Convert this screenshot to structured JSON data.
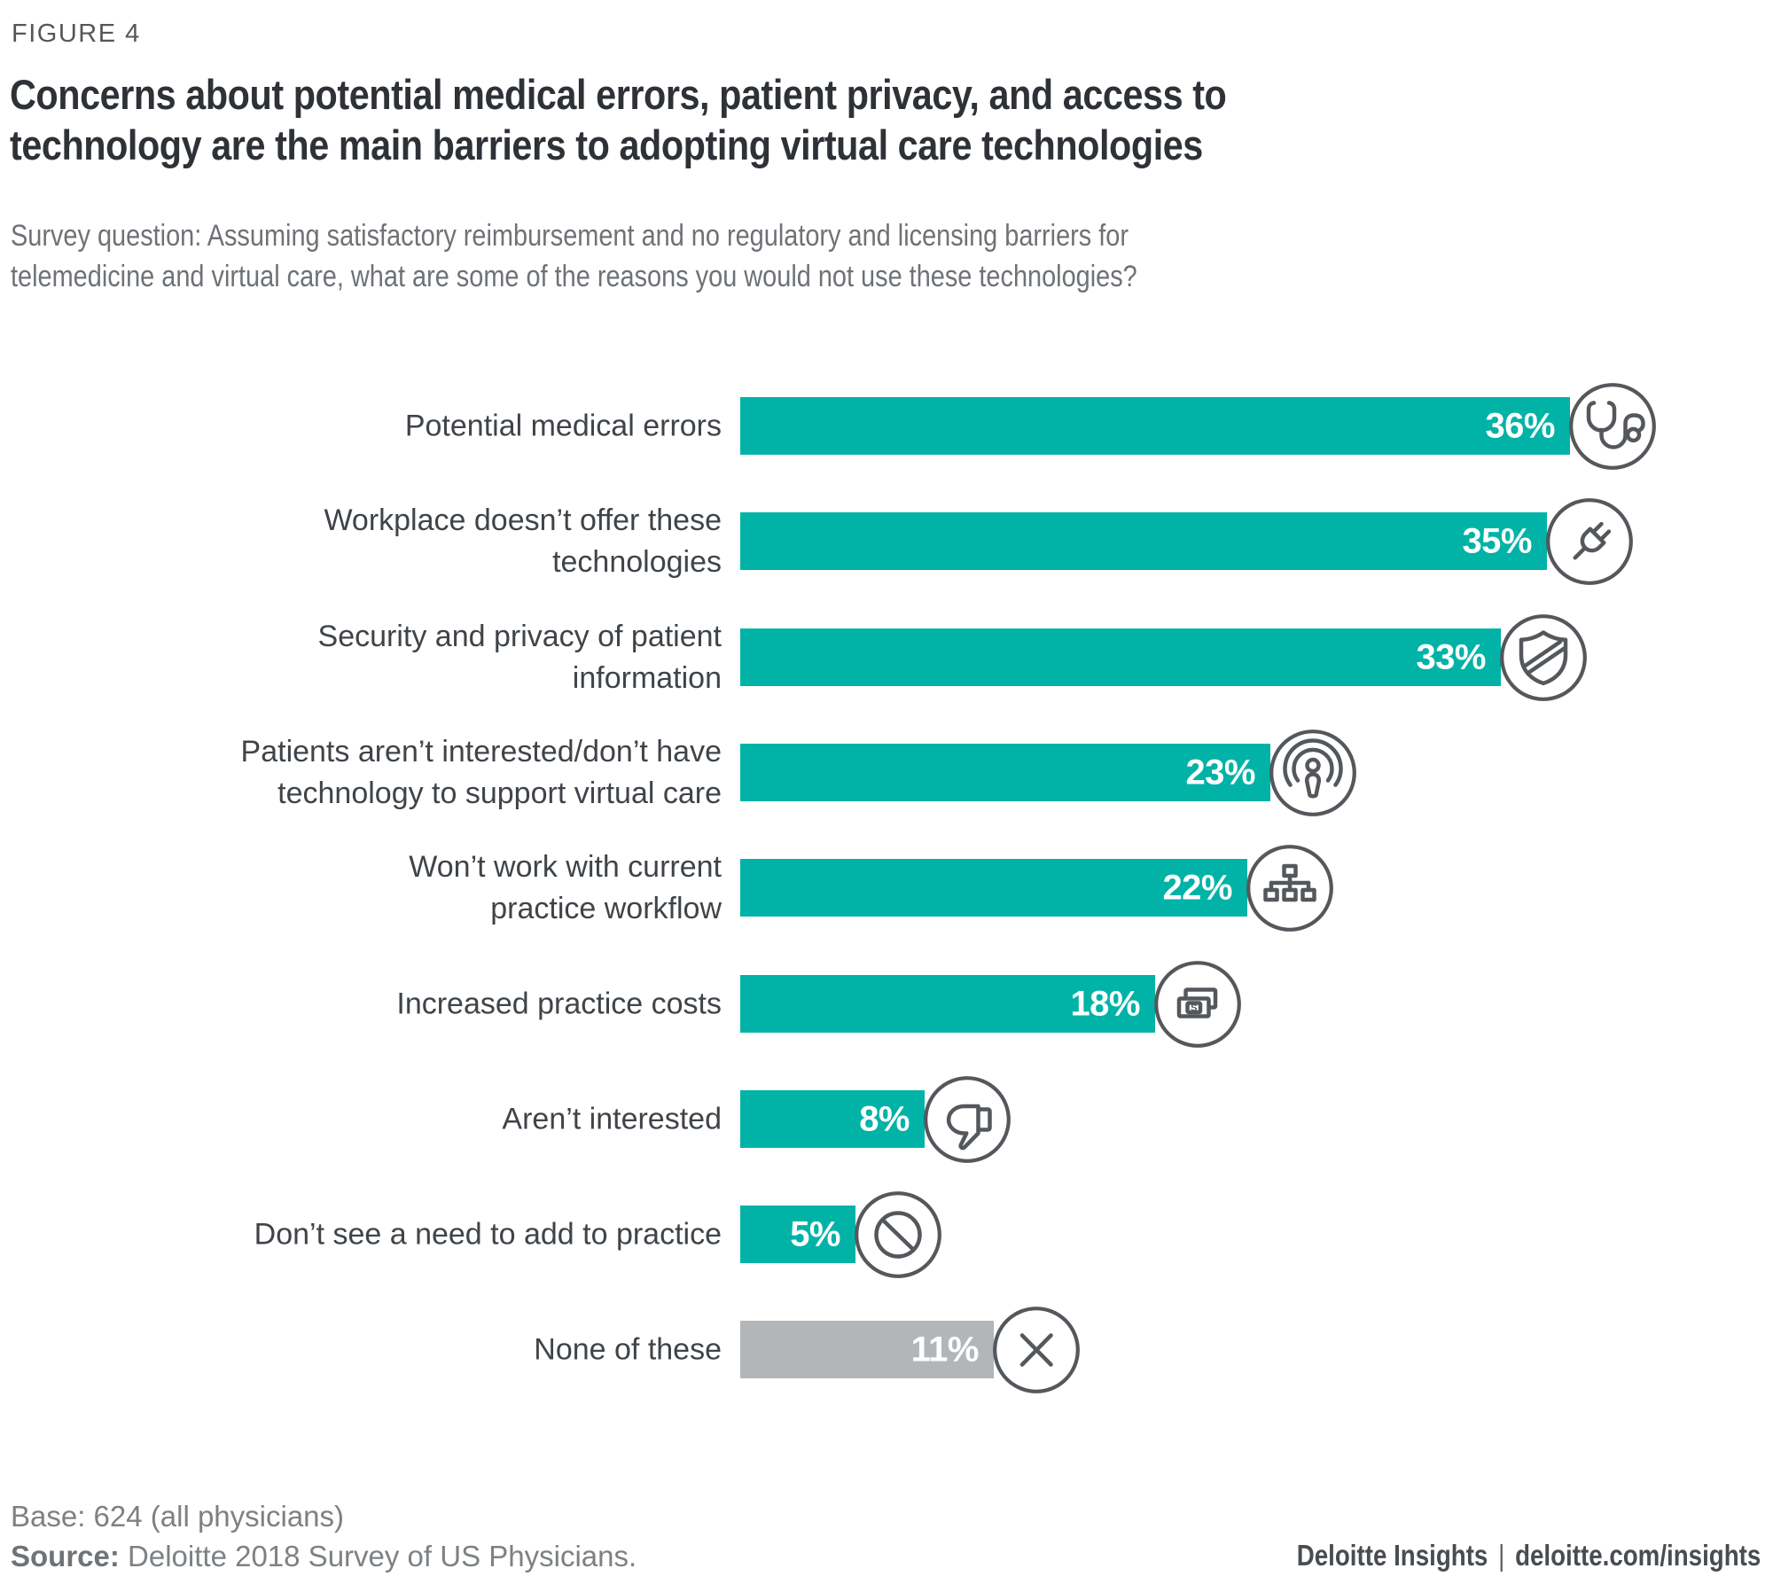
{
  "figure_label": "FIGURE 4",
  "title_lines": [
    "Concerns about potential medical errors, patient privacy, and access to",
    "technology are the main barriers to adopting virtual care technologies"
  ],
  "survey_question_lines": [
    "Survey question: Assuming satisfactory reimbursement and no regulatory and licensing barriers for",
    "telemedicine and virtual care, what are some of the reasons you would not use these technologies?"
  ],
  "chart_data": {
    "type": "bar",
    "orientation": "horizontal",
    "value_format": "percent",
    "xlim": [
      0,
      36
    ],
    "grid": false,
    "legend": false,
    "bar_color_default": "#00b3a6",
    "bar_color_none_of_these": "#b3b6b8",
    "categories": [
      "Potential medical errors",
      "Workplace doesn’t offer these technologies",
      "Security and privacy of patient information",
      "Patients aren’t interested/don’t have technology to support virtual care",
      "Won’t work with current practice workflow",
      "Increased practice costs",
      "Aren’t interested",
      "Don’t see a need to add to practice",
      "None of these"
    ],
    "values": [
      36,
      35,
      33,
      23,
      22,
      18,
      8,
      5,
      11
    ],
    "bars": [
      {
        "label_lines": [
          "Potential medical errors"
        ],
        "value": 36,
        "value_label": "36%",
        "icon": "stethoscope-icon",
        "color": "#00b3a6"
      },
      {
        "label_lines": [
          "Workplace doesn’t offer these",
          "technologies"
        ],
        "value": 35,
        "value_label": "35%",
        "icon": "plug-icon",
        "color": "#00b3a6"
      },
      {
        "label_lines": [
          "Security and privacy of patient",
          "information"
        ],
        "value": 33,
        "value_label": "33%",
        "icon": "shield-icon",
        "color": "#00b3a6"
      },
      {
        "label_lines": [
          "Patients aren’t interested/don’t have",
          "technology to support virtual care"
        ],
        "value": 23,
        "value_label": "23%",
        "icon": "patient-signal-icon",
        "color": "#00b3a6"
      },
      {
        "label_lines": [
          "Won’t work with current",
          "practice workflow"
        ],
        "value": 22,
        "value_label": "22%",
        "icon": "workflow-icon",
        "color": "#00b3a6"
      },
      {
        "label_lines": [
          "Increased practice costs"
        ],
        "value": 18,
        "value_label": "18%",
        "icon": "money-icon",
        "color": "#00b3a6"
      },
      {
        "label_lines": [
          "Aren’t interested"
        ],
        "value": 8,
        "value_label": "8%",
        "icon": "thumbs-down-icon",
        "color": "#00b3a6"
      },
      {
        "label_lines": [
          "Don’t see a need to add to practice"
        ],
        "value": 5,
        "value_label": "5%",
        "icon": "no-entry-icon",
        "color": "#00b3a6"
      },
      {
        "label_lines": [
          "None of these"
        ],
        "value": 11,
        "value_label": "11%",
        "icon": "x-icon",
        "color": "#b3b6b8"
      }
    ]
  },
  "footer": {
    "base_text": "Base: 624 (all physicians)",
    "source_label": "Source:",
    "source_text": " Deloitte 2018 Survey of US Physicians.",
    "brand": "Deloitte Insights",
    "separator": "|",
    "url": "deloitte.com/insights"
  },
  "colors": {
    "accent_teal": "#00b3a6",
    "neutral_gray_bar": "#b3b6b8",
    "icon_stroke": "#54585c",
    "title_text": "#2e3236",
    "label_text": "#3f4449",
    "muted_text": "#7d8184"
  }
}
